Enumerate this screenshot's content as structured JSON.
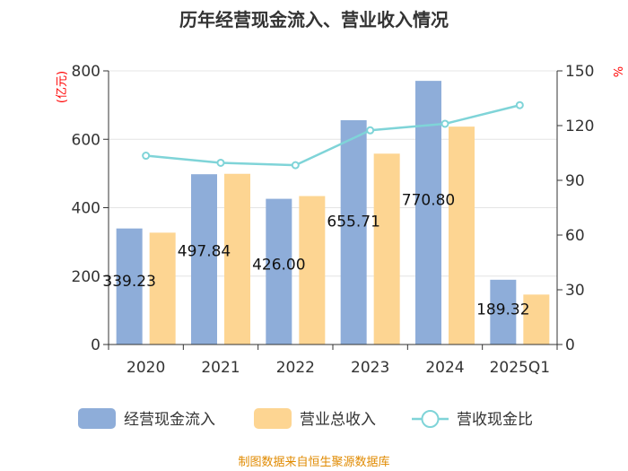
{
  "chart_data": {
    "type": "bar",
    "title": "历年经营现金流入、营业收入情况",
    "categories": [
      "2020",
      "2021",
      "2022",
      "2023",
      "2024",
      "2025Q1"
    ],
    "y_left_unit": "(亿元)",
    "y_right_unit": "%",
    "y_left_range": [
      0,
      800
    ],
    "y_left_ticks": [
      "0",
      "200",
      "400",
      "600",
      "800"
    ],
    "y_right_range": [
      0,
      150
    ],
    "y_right_ticks": [
      "0",
      "30",
      "60",
      "90",
      "120",
      "150"
    ],
    "grid": true,
    "legend_position": "bottom",
    "series": [
      {
        "name": "经营现金流入",
        "type": "bar",
        "axis": "left",
        "color": "#8eadd9",
        "values": [
          339.23,
          497.84,
          426.0,
          655.71,
          770.8,
          189.32
        ],
        "labels": [
          "339.23",
          "497.84",
          "426.00",
          "655.71",
          "770.80",
          "189.32"
        ]
      },
      {
        "name": "营业总收入",
        "type": "bar",
        "axis": "left",
        "color": "#fdd592",
        "values": [
          327,
          499,
          434,
          558,
          637,
          146
        ]
      },
      {
        "name": "营收现金比",
        "type": "line",
        "axis": "right",
        "color": "#7fd4d8",
        "values": [
          103.5,
          99.6,
          98.3,
          117.4,
          121.0,
          131.2
        ]
      }
    ]
  },
  "footer": {
    "source": "制图数据来自恒生聚源数据库"
  }
}
